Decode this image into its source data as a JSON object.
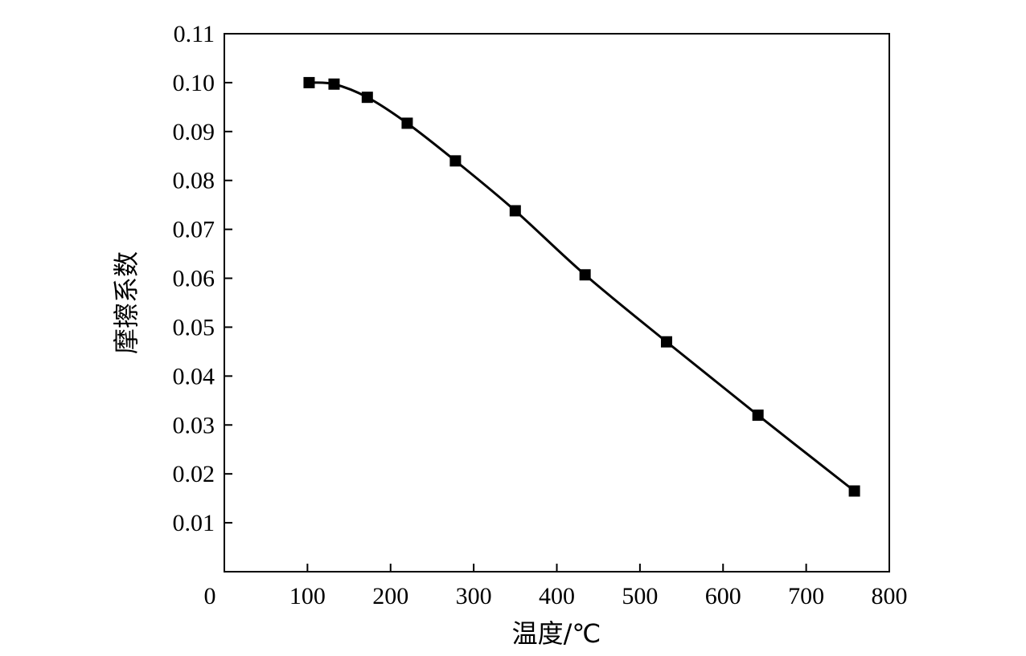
{
  "chart_data": {
    "type": "line",
    "xlabel": "温度/℃",
    "ylabel": "摩擦系数",
    "xlim": [
      0,
      800
    ],
    "ylim": [
      0,
      0.11
    ],
    "xticks": [
      "0",
      "100",
      "200",
      "300",
      "400",
      "500",
      "600",
      "700",
      "800"
    ],
    "yticks": [
      "0.01",
      "0.02",
      "0.03",
      "0.04",
      "0.05",
      "0.06",
      "0.07",
      "0.08",
      "0.09",
      "0.10",
      "0.11"
    ],
    "grid": false,
    "marker": "square",
    "series": [
      {
        "x": [
          102,
          132,
          172,
          220,
          278,
          350,
          434,
          532,
          642,
          758
        ],
        "y": [
          0.1,
          0.0997,
          0.097,
          0.0917,
          0.084,
          0.0738,
          0.0607,
          0.047,
          0.032,
          0.0165
        ]
      }
    ]
  }
}
